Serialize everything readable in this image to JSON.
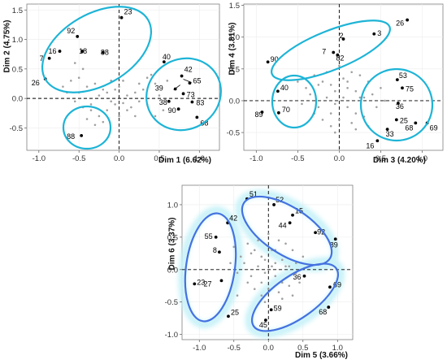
{
  "colors": {
    "ellipse_panels_1_2": "#1eb4d6",
    "ellipse_panel_3": "#4472e0",
    "ellipse_glow": "#c8f2f8",
    "highlight_point": "#000000",
    "other_point": "#a0a0a0"
  },
  "chart_data": [
    {
      "type": "scatter",
      "xlabel": "Dim 1 (6.62%)",
      "ylabel": "Dim 2 (4.75%)",
      "xlim": [
        -1.15,
        1.25
      ],
      "ylim": [
        -0.88,
        1.6
      ],
      "xticks": [
        -1.0,
        -0.5,
        0.0,
        0.5,
        1.0
      ],
      "xtick_labels": [
        "-1.0",
        "-0.5",
        "0.0",
        "0.5",
        "1.0"
      ],
      "yticks": [
        -0.5,
        0.0,
        0.5,
        1.0,
        1.5
      ],
      "ytick_labels": [
        "-0.5",
        "0.0",
        "0.5",
        "1.0",
        "1.5"
      ],
      "grid": true,
      "labeled_points": [
        {
          "label": "23",
          "x": 0.03,
          "y": 1.37
        },
        {
          "label": "92",
          "x": -0.52,
          "y": 1.05
        },
        {
          "label": "16",
          "x": -0.74,
          "y": 0.8
        },
        {
          "label": "18",
          "x": -0.46,
          "y": 0.8
        },
        {
          "label": "88",
          "x": -0.2,
          "y": 0.78
        },
        {
          "label": "7",
          "x": -0.87,
          "y": 0.68
        },
        {
          "label": "26",
          "x": -0.92,
          "y": 0.33
        },
        {
          "label": "40",
          "x": 0.56,
          "y": 0.62
        },
        {
          "label": "42",
          "x": 0.78,
          "y": 0.38
        },
        {
          "label": "65",
          "x": 0.88,
          "y": 0.26
        },
        {
          "label": "39",
          "x": 0.7,
          "y": 0.16
        },
        {
          "label": "73",
          "x": 0.8,
          "y": 0.08
        },
        {
          "label": "38",
          "x": 0.62,
          "y": -0.05
        },
        {
          "label": "83",
          "x": 0.91,
          "y": -0.06
        },
        {
          "label": "90",
          "x": 0.74,
          "y": -0.18
        },
        {
          "label": "68",
          "x": 0.97,
          "y": -0.32
        },
        {
          "label": "88",
          "x": -0.47,
          "y": -0.63
        }
      ],
      "other_points": [
        [
          -0.6,
          0.3
        ],
        [
          -0.5,
          0.35
        ],
        [
          -0.4,
          0.2
        ],
        [
          -0.3,
          0.25
        ],
        [
          -0.2,
          0.15
        ],
        [
          -0.15,
          0.1
        ],
        [
          -0.1,
          -0.05
        ],
        [
          -0.05,
          -0.1
        ],
        [
          0.05,
          -0.08
        ],
        [
          0.1,
          0.05
        ],
        [
          0.15,
          -0.15
        ],
        [
          0.2,
          0.1
        ],
        [
          0.25,
          -0.05
        ],
        [
          0.3,
          0.15
        ],
        [
          0.35,
          -0.1
        ],
        [
          0.4,
          0.4
        ],
        [
          0.45,
          0.25
        ],
        [
          0.5,
          0.05
        ],
        [
          -0.45,
          -0.15
        ],
        [
          -0.35,
          -0.2
        ],
        [
          -0.25,
          -0.3
        ],
        [
          -0.2,
          -0.4
        ],
        [
          -0.3,
          -0.45
        ],
        [
          -0.4,
          -0.35
        ],
        [
          -0.35,
          -0.1
        ],
        [
          -0.55,
          -0.05
        ],
        [
          -0.65,
          0.1
        ],
        [
          -0.7,
          0.2
        ],
        [
          0.0,
          0.2
        ],
        [
          0.05,
          0.3
        ],
        [
          -0.1,
          0.3
        ],
        [
          0.2,
          -0.3
        ],
        [
          0.1,
          -0.2
        ],
        [
          -0.15,
          -0.2
        ],
        [
          0.6,
          0.3
        ],
        [
          0.55,
          -0.2
        ],
        [
          0.35,
          0.35
        ],
        [
          -0.25,
          0.05
        ],
        [
          -0.5,
          0.1
        ],
        [
          -0.45,
          0.5
        ],
        [
          -0.55,
          0.6
        ],
        [
          0.45,
          -0.3
        ],
        [
          0.0,
          -0.3
        ],
        [
          -0.05,
          0.15
        ],
        [
          0.25,
          0.25
        ]
      ]
    },
    {
      "type": "scatter",
      "xlabel": "Dim 3 (4.20%)",
      "ylabel": "Dim 4 (3.81%)",
      "xlim": [
        -1.15,
        1.25
      ],
      "ylim": [
        -0.78,
        1.52
      ],
      "xticks": [
        -1.0,
        -0.5,
        0.0,
        0.5,
        1.0
      ],
      "xtick_labels": [
        "-1.0",
        "-0.5",
        "0.0",
        "0.5",
        "1.0"
      ],
      "yticks": [
        -0.5,
        0.0,
        0.5,
        1.0,
        1.5
      ],
      "ytick_labels": [
        "-0.5",
        "0.0",
        "0.5",
        "1.0",
        "1.5"
      ],
      "grid": true,
      "labeled_points": [
        {
          "label": "26",
          "x": 0.82,
          "y": 1.27
        },
        {
          "label": "3",
          "x": 0.42,
          "y": 1.05
        },
        {
          "label": "2",
          "x": 0.05,
          "y": 0.97
        },
        {
          "label": "7",
          "x": -0.07,
          "y": 0.76
        },
        {
          "label": "82",
          "x": -0.02,
          "y": 0.72
        },
        {
          "label": "90",
          "x": -0.86,
          "y": 0.61
        },
        {
          "label": "40",
          "x": -0.74,
          "y": 0.15
        },
        {
          "label": "89",
          "x": -0.93,
          "y": -0.18
        },
        {
          "label": "70",
          "x": -0.73,
          "y": -0.19
        },
        {
          "label": "53",
          "x": 0.7,
          "y": 0.33
        },
        {
          "label": "75",
          "x": 0.76,
          "y": 0.2
        },
        {
          "label": "36",
          "x": 0.71,
          "y": -0.04
        },
        {
          "label": "25",
          "x": 0.69,
          "y": -0.3
        },
        {
          "label": "68",
          "x": 0.92,
          "y": -0.35
        },
        {
          "label": "69",
          "x": 1.06,
          "y": -0.35
        },
        {
          "label": "33",
          "x": 0.58,
          "y": -0.45
        },
        {
          "label": "16",
          "x": 0.46,
          "y": -0.63
        }
      ],
      "other_points": [
        [
          -0.3,
          0.4
        ],
        [
          -0.2,
          0.3
        ],
        [
          -0.1,
          0.25
        ],
        [
          0.05,
          0.35
        ],
        [
          0.1,
          0.2
        ],
        [
          0.2,
          0.15
        ],
        [
          0.3,
          0.05
        ],
        [
          -0.15,
          0.05
        ],
        [
          -0.05,
          -0.05
        ],
        [
          0.1,
          -0.1
        ],
        [
          0.2,
          -0.2
        ],
        [
          -0.25,
          -0.1
        ],
        [
          -0.35,
          0.1
        ],
        [
          -0.4,
          0.2
        ],
        [
          0.35,
          0.3
        ],
        [
          0.4,
          0.1
        ],
        [
          0.45,
          -0.1
        ],
        [
          -0.1,
          -0.2
        ],
        [
          0.0,
          -0.3
        ],
        [
          0.15,
          -0.35
        ],
        [
          -0.2,
          -0.3
        ],
        [
          0.25,
          0.4
        ],
        [
          -0.05,
          0.15
        ],
        [
          0.05,
          0.05
        ],
        [
          -0.3,
          -0.2
        ],
        [
          -0.45,
          -0.05
        ],
        [
          0.3,
          -0.25
        ],
        [
          0.5,
          0.2
        ],
        [
          0.15,
          0.45
        ],
        [
          -0.15,
          0.45
        ],
        [
          0.0,
          0.55
        ],
        [
          0.2,
          -0.45
        ],
        [
          -0.1,
          -0.4
        ],
        [
          0.1,
          0.3
        ],
        [
          -0.25,
          0.25
        ],
        [
          0.35,
          -0.4
        ],
        [
          0.55,
          0.0
        ],
        [
          -0.5,
          0.3
        ],
        [
          0.25,
          0.05
        ],
        [
          -0.05,
          -0.5
        ]
      ]
    },
    {
      "type": "scatter",
      "xlabel": "Dim 5 (3.66%)",
      "ylabel": "Dim 6 (3.37%)",
      "xlim": [
        -1.25,
        1.22
      ],
      "ylim": [
        -1.08,
        1.3
      ],
      "xticks": [
        -1.0,
        -0.5,
        0.0,
        0.5,
        1.0
      ],
      "xtick_labels": [
        "-1.0",
        "-0.5",
        "0.0",
        "0.5",
        "1.0"
      ],
      "yticks": [
        -1.0,
        -0.5,
        0.0,
        0.5,
        1.0
      ],
      "ytick_labels": [
        "-1.0",
        "-0.5",
        "0.0",
        "0.5",
        "1.0"
      ],
      "grid": true,
      "labeled_points": [
        {
          "label": "51",
          "x": -0.31,
          "y": 1.09
        },
        {
          "label": "52",
          "x": 0.08,
          "y": 1.0
        },
        {
          "label": "15",
          "x": 0.35,
          "y": 0.84
        },
        {
          "label": "44",
          "x": 0.31,
          "y": 0.72
        },
        {
          "label": "92",
          "x": 0.68,
          "y": 0.57
        },
        {
          "label": "89",
          "x": 0.97,
          "y": 0.47
        },
        {
          "label": "42",
          "x": -0.59,
          "y": 0.72
        },
        {
          "label": "55",
          "x": -0.76,
          "y": 0.5
        },
        {
          "label": "8",
          "x": -0.71,
          "y": 0.27
        },
        {
          "label": "27",
          "x": -0.68,
          "y": -0.17
        },
        {
          "label": "23",
          "x": -1.07,
          "y": -0.22
        },
        {
          "label": "25",
          "x": -0.58,
          "y": -0.72
        },
        {
          "label": "36",
          "x": 0.52,
          "y": -0.1
        },
        {
          "label": "69",
          "x": 0.89,
          "y": -0.27
        },
        {
          "label": "68",
          "x": 0.87,
          "y": -0.58
        },
        {
          "label": "59",
          "x": 0.04,
          "y": -0.62
        },
        {
          "label": "45",
          "x": -0.04,
          "y": -0.78
        }
      ],
      "other_points": [
        [
          -0.3,
          0.4
        ],
        [
          -0.2,
          0.3
        ],
        [
          -0.1,
          0.2
        ],
        [
          0.05,
          0.3
        ],
        [
          0.1,
          0.1
        ],
        [
          0.2,
          0.15
        ],
        [
          0.3,
          0.05
        ],
        [
          -0.15,
          0.05
        ],
        [
          -0.05,
          -0.05
        ],
        [
          0.1,
          -0.1
        ],
        [
          0.2,
          -0.2
        ],
        [
          -0.25,
          -0.1
        ],
        [
          -0.35,
          0.1
        ],
        [
          -0.4,
          0.2
        ],
        [
          0.35,
          0.3
        ],
        [
          0.4,
          0.1
        ],
        [
          0.45,
          -0.2
        ],
        [
          -0.1,
          -0.2
        ],
        [
          0.0,
          -0.3
        ],
        [
          0.15,
          -0.35
        ],
        [
          -0.2,
          -0.3
        ],
        [
          0.25,
          0.4
        ],
        [
          -0.05,
          0.15
        ],
        [
          0.05,
          0.05
        ],
        [
          -0.3,
          -0.2
        ],
        [
          -0.45,
          -0.05
        ],
        [
          0.3,
          -0.25
        ],
        [
          0.5,
          0.2
        ],
        [
          0.15,
          0.45
        ],
        [
          -0.15,
          0.45
        ],
        [
          0.0,
          0.55
        ],
        [
          0.2,
          -0.45
        ],
        [
          -0.1,
          -0.4
        ],
        [
          0.1,
          0.3
        ],
        [
          -0.25,
          0.25
        ],
        [
          0.35,
          -0.4
        ],
        [
          -0.5,
          0.35
        ],
        [
          -0.45,
          -0.4
        ],
        [
          0.25,
          0.05
        ],
        [
          -0.05,
          -0.5
        ],
        [
          0.4,
          -0.05
        ],
        [
          -0.55,
          0.1
        ]
      ]
    }
  ]
}
